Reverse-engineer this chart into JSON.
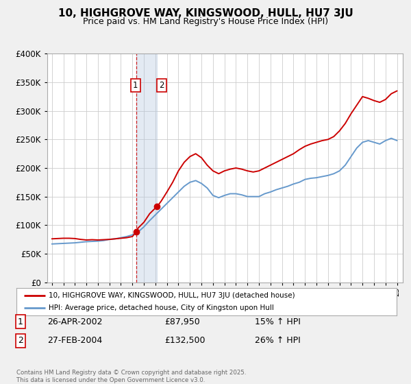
{
  "title": "10, HIGHGROVE WAY, KINGSWOOD, HULL, HU7 3JU",
  "subtitle": "Price paid vs. HM Land Registry's House Price Index (HPI)",
  "legend_line1": "10, HIGHGROVE WAY, KINGSWOOD, HULL, HU7 3JU (detached house)",
  "legend_line2": "HPI: Average price, detached house, City of Kingston upon Hull",
  "footnote": "Contains HM Land Registry data © Crown copyright and database right 2025.\nThis data is licensed under the Open Government Licence v3.0.",
  "transaction1_date": "26-APR-2002",
  "transaction1_price": "£87,950",
  "transaction1_hpi": "15% ↑ HPI",
  "transaction2_date": "27-FEB-2004",
  "transaction2_price": "£132,500",
  "transaction2_hpi": "26% ↑ HPI",
  "transaction1_x": 2002.32,
  "transaction1_y": 87950,
  "transaction2_x": 2004.15,
  "transaction2_y": 132500,
  "shade_x_start": 2002.32,
  "shade_x_end": 2004.15,
  "vline_x": 2002.32,
  "property_color": "#cc0000",
  "hpi_color": "#6699cc",
  "background_color": "#f0f0f0",
  "plot_bg_color": "#ffffff",
  "ylim": [
    0,
    400000
  ],
  "xlim_start": 1994.6,
  "xlim_end": 2025.5,
  "years_hpi": [
    1995.0,
    1995.5,
    1996.0,
    1996.5,
    1997.0,
    1997.5,
    1998.0,
    1998.5,
    1999.0,
    1999.5,
    2000.0,
    2000.5,
    2001.0,
    2001.5,
    2002.0,
    2002.5,
    2003.0,
    2003.5,
    2004.0,
    2004.5,
    2005.0,
    2005.5,
    2006.0,
    2006.5,
    2007.0,
    2007.5,
    2008.0,
    2008.5,
    2009.0,
    2009.5,
    2010.0,
    2010.5,
    2011.0,
    2011.5,
    2012.0,
    2012.5,
    2013.0,
    2013.5,
    2014.0,
    2014.5,
    2015.0,
    2015.5,
    2016.0,
    2016.5,
    2017.0,
    2017.5,
    2018.0,
    2018.5,
    2019.0,
    2019.5,
    2020.0,
    2020.5,
    2021.0,
    2021.5,
    2022.0,
    2022.5,
    2023.0,
    2023.5,
    2024.0,
    2024.5,
    2025.0
  ],
  "hpi_values": [
    67000,
    67500,
    68000,
    68500,
    69000,
    70000,
    71000,
    71500,
    72000,
    73000,
    75000,
    76000,
    78000,
    80000,
    83000,
    88000,
    97000,
    108000,
    118000,
    128000,
    138000,
    148000,
    158000,
    168000,
    175000,
    178000,
    173000,
    165000,
    152000,
    148000,
    152000,
    155000,
    155000,
    153000,
    150000,
    150000,
    150000,
    155000,
    158000,
    162000,
    165000,
    168000,
    172000,
    175000,
    180000,
    182000,
    183000,
    185000,
    187000,
    190000,
    195000,
    205000,
    220000,
    235000,
    245000,
    248000,
    245000,
    242000,
    248000,
    252000,
    248000
  ],
  "years_prop": [
    1995.0,
    1995.5,
    1996.0,
    1996.5,
    1997.0,
    1997.5,
    1998.0,
    1998.5,
    1999.0,
    1999.5,
    2000.0,
    2000.5,
    2001.0,
    2001.5,
    2002.0,
    2002.32,
    2002.5,
    2003.0,
    2003.5,
    2004.0,
    2004.15,
    2004.5,
    2005.0,
    2005.5,
    2006.0,
    2006.5,
    2007.0,
    2007.5,
    2008.0,
    2008.5,
    2009.0,
    2009.5,
    2010.0,
    2010.5,
    2011.0,
    2011.5,
    2012.0,
    2012.5,
    2013.0,
    2013.5,
    2014.0,
    2014.5,
    2015.0,
    2015.5,
    2016.0,
    2016.5,
    2017.0,
    2017.5,
    2018.0,
    2018.5,
    2019.0,
    2019.5,
    2020.0,
    2020.5,
    2021.0,
    2021.5,
    2022.0,
    2022.5,
    2023.0,
    2023.5,
    2024.0,
    2024.5,
    2025.0
  ],
  "prop_values": [
    76000,
    76500,
    77000,
    77000,
    76500,
    75000,
    74000,
    74500,
    74000,
    74500,
    75000,
    76000,
    77000,
    78000,
    80000,
    87950,
    95000,
    105000,
    120000,
    130000,
    132500,
    142000,
    158000,
    175000,
    195000,
    210000,
    220000,
    225000,
    218000,
    205000,
    195000,
    190000,
    195000,
    198000,
    200000,
    198000,
    195000,
    193000,
    195000,
    200000,
    205000,
    210000,
    215000,
    220000,
    225000,
    232000,
    238000,
    242000,
    245000,
    248000,
    250000,
    255000,
    265000,
    278000,
    295000,
    310000,
    325000,
    322000,
    318000,
    315000,
    320000,
    330000,
    335000
  ]
}
